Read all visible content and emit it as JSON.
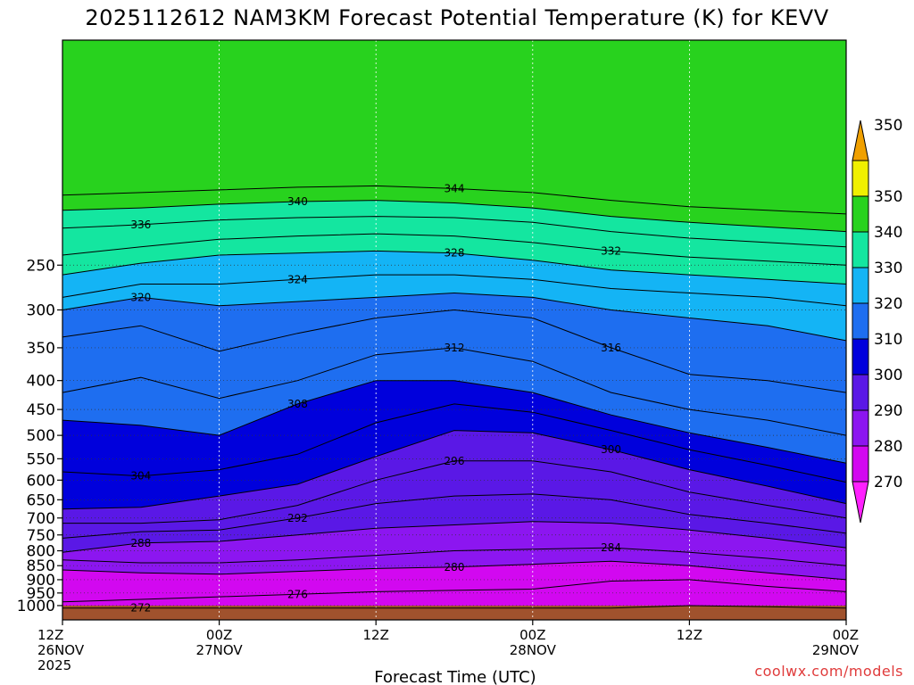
{
  "page": {
    "title": "2025112612 NAM3KM Forecast Potential Temperature (K) for KEVV",
    "credit": "coolwx.com/models"
  },
  "chart_data": {
    "type": "heatmap",
    "title": "2025112612 NAM3KM Forecast Potential Temperature (K) for KEVV",
    "xlabel": "Forecast Time (UTC)",
    "ylabel": "",
    "x_ticks": [
      {
        "hour": 0,
        "lines": [
          "12Z",
          "26NOV",
          "2025"
        ]
      },
      {
        "hour": 12,
        "lines": [
          "00Z",
          "27NOV"
        ]
      },
      {
        "hour": 24,
        "lines": [
          "12Z"
        ]
      },
      {
        "hour": 36,
        "lines": [
          "00Z",
          "28NOV"
        ]
      },
      {
        "hour": 48,
        "lines": [
          "12Z"
        ]
      },
      {
        "hour": 60,
        "lines": [
          "00Z",
          "29NOV"
        ]
      }
    ],
    "x_range_hours": [
      0,
      60
    ],
    "y_axis": "pressure",
    "y_log_scale": true,
    "y_range": [
      100,
      1060
    ],
    "y_ticks": [
      250,
      300,
      350,
      400,
      450,
      500,
      550,
      600,
      650,
      700,
      750,
      800,
      850,
      900,
      950,
      1000
    ],
    "grid": true,
    "color_levels": [
      270,
      280,
      290,
      300,
      310,
      320,
      330,
      340,
      350
    ],
    "colorbar": [
      {
        "label": "",
        "color": "#ff20ff"
      },
      {
        "label": "270",
        "color": "#d208f0"
      },
      {
        "label": "280",
        "color": "#8c16f0"
      },
      {
        "label": "290",
        "color": "#5a18e6"
      },
      {
        "label": "300",
        "color": "#0000dc"
      },
      {
        "label": "310",
        "color": "#1e6ef0"
      },
      {
        "label": "320",
        "color": "#14b4f5"
      },
      {
        "label": "330",
        "color": "#14e6a0"
      },
      {
        "label": "340",
        "color": "#28d21e"
      },
      {
        "label": "350",
        "color": "#f0f000"
      },
      {
        "label": "",
        "color": "#f0a000"
      }
    ],
    "ground_color": "#a0522d",
    "isentropes": [
      {
        "theta": 272,
        "hours": [
          0,
          6,
          12,
          18,
          24,
          30,
          36,
          42,
          48,
          54,
          60
        ],
        "p": [
          1010,
          1010,
          1010,
          1010,
          1010,
          1010,
          1010,
          1010,
          1000,
          1005,
          1010
        ]
      },
      {
        "theta": 276,
        "hours": [
          0,
          6,
          12,
          18,
          24,
          30,
          36,
          42,
          48,
          54,
          60
        ],
        "p": [
          985,
          975,
          965,
          955,
          945,
          940,
          935,
          905,
          900,
          925,
          945
        ]
      },
      {
        "theta": 280,
        "hours": [
          0,
          6,
          12,
          18,
          24,
          30,
          36,
          42,
          48,
          54,
          60
        ],
        "p": [
          865,
          875,
          880,
          870,
          860,
          855,
          845,
          835,
          850,
          875,
          900
        ]
      },
      {
        "theta": 284,
        "hours": [
          0,
          6,
          12,
          18,
          24,
          30,
          36,
          42,
          48,
          54,
          60
        ],
        "p": [
          830,
          840,
          840,
          830,
          815,
          800,
          795,
          790,
          805,
          825,
          850
        ]
      },
      {
        "theta": 288,
        "hours": [
          0,
          6,
          12,
          18,
          24,
          30,
          36,
          42,
          48,
          54,
          60
        ],
        "p": [
          805,
          775,
          770,
          750,
          730,
          720,
          710,
          715,
          735,
          760,
          790
        ]
      },
      {
        "theta": 292,
        "hours": [
          0,
          6,
          12,
          18,
          24,
          30,
          36,
          42,
          48,
          54,
          60
        ],
        "p": [
          760,
          740,
          735,
          700,
          660,
          640,
          635,
          650,
          690,
          715,
          745
        ]
      },
      {
        "theta": 296,
        "hours": [
          0,
          6,
          12,
          18,
          24,
          30,
          36,
          42,
          48,
          54,
          60
        ],
        "p": [
          715,
          715,
          705,
          665,
          600,
          555,
          555,
          580,
          630,
          665,
          700
        ]
      },
      {
        "theta": 300,
        "hours": [
          0,
          6,
          12,
          18,
          24,
          30,
          36,
          42,
          48,
          54,
          60
        ],
        "p": [
          675,
          670,
          640,
          610,
          545,
          490,
          495,
          530,
          575,
          615,
          660
        ]
      },
      {
        "theta": 304,
        "hours": [
          0,
          6,
          12,
          18,
          24,
          30,
          36,
          42,
          48,
          54,
          60
        ],
        "p": [
          580,
          590,
          575,
          540,
          475,
          440,
          455,
          490,
          530,
          565,
          605
        ]
      },
      {
        "theta": 308,
        "hours": [
          0,
          6,
          12,
          18,
          24,
          30,
          36,
          42,
          48,
          54,
          60
        ],
        "p": [
          470,
          480,
          500,
          440,
          400,
          400,
          420,
          460,
          495,
          525,
          560
        ]
      },
      {
        "theta": 312,
        "hours": [
          0,
          6,
          12,
          18,
          24,
          30,
          36,
          42,
          48,
          54,
          60
        ],
        "p": [
          420,
          395,
          430,
          400,
          360,
          350,
          370,
          420,
          450,
          470,
          500
        ]
      },
      {
        "theta": 316,
        "hours": [
          0,
          6,
          12,
          18,
          24,
          30,
          36,
          42,
          48,
          54,
          60
        ],
        "p": [
          335,
          320,
          355,
          330,
          310,
          300,
          310,
          350,
          390,
          400,
          420
        ]
      },
      {
        "theta": 320,
        "hours": [
          0,
          6,
          12,
          18,
          24,
          30,
          36,
          42,
          48,
          54,
          60
        ],
        "p": [
          300,
          285,
          295,
          290,
          285,
          280,
          285,
          300,
          310,
          320,
          340
        ]
      },
      {
        "theta": 324,
        "hours": [
          0,
          6,
          12,
          18,
          24,
          30,
          36,
          42,
          48,
          54,
          60
        ],
        "p": [
          285,
          270,
          270,
          265,
          260,
          260,
          265,
          275,
          280,
          285,
          295
        ]
      },
      {
        "theta": 328,
        "hours": [
          0,
          6,
          12,
          18,
          24,
          30,
          36,
          42,
          48,
          54,
          60
        ],
        "p": [
          260,
          248,
          240,
          238,
          236,
          238,
          245,
          255,
          260,
          265,
          270
        ]
      },
      {
        "theta": 332,
        "hours": [
          0,
          6,
          12,
          18,
          24,
          30,
          36,
          42,
          48,
          54,
          60
        ],
        "p": [
          240,
          232,
          225,
          222,
          220,
          222,
          228,
          236,
          242,
          246,
          250
        ]
      },
      {
        "theta": 336,
        "hours": [
          0,
          6,
          12,
          18,
          24,
          30,
          36,
          42,
          48,
          54,
          60
        ],
        "p": [
          215,
          212,
          208,
          206,
          205,
          206,
          210,
          218,
          224,
          228,
          232
        ]
      },
      {
        "theta": 340,
        "hours": [
          0,
          6,
          12,
          18,
          24,
          30,
          36,
          42,
          48,
          54,
          60
        ],
        "p": [
          200,
          198,
          195,
          193,
          192,
          194,
          198,
          205,
          210,
          214,
          218
        ]
      },
      {
        "theta": 344,
        "hours": [
          0,
          6,
          12,
          18,
          24,
          30,
          36,
          42,
          48,
          54,
          60
        ],
        "p": [
          188,
          186,
          184,
          182,
          181,
          183,
          186,
          192,
          197,
          200,
          203
        ]
      }
    ]
  }
}
